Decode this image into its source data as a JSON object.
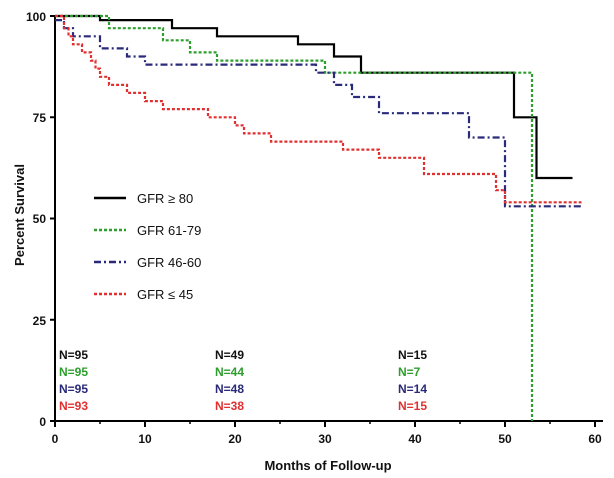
{
  "chart_data": {
    "type": "line",
    "title": "",
    "xlabel": "Months of Follow-up",
    "ylabel": "Percent Survival",
    "xlim": [
      0,
      60
    ],
    "ylim": [
      0,
      100
    ],
    "x_ticks": [
      "0",
      "10",
      "20",
      "30",
      "40",
      "50",
      "60"
    ],
    "y_ticks": [
      "0",
      "25",
      "50",
      "75",
      "100"
    ],
    "grid": false,
    "legend_placement": "left-middle",
    "series": [
      {
        "name": "GFR ≥ 80",
        "color": "#000000",
        "dash": "solid",
        "step": [
          [
            0,
            100
          ],
          [
            5,
            100
          ],
          [
            5,
            99
          ],
          [
            13,
            99
          ],
          [
            13,
            97
          ],
          [
            18,
            97
          ],
          [
            18,
            95
          ],
          [
            27,
            95
          ],
          [
            27,
            93
          ],
          [
            31,
            93
          ],
          [
            31,
            90
          ],
          [
            34,
            90
          ],
          [
            34,
            86
          ],
          [
            51,
            86
          ],
          [
            51,
            75
          ],
          [
            53.5,
            75
          ],
          [
            53.5,
            60
          ],
          [
            57.5,
            60
          ]
        ]
      },
      {
        "name": "GFR 61-79",
        "color": "#2e9e2e",
        "dash": "dotted",
        "step": [
          [
            0,
            100
          ],
          [
            6,
            100
          ],
          [
            6,
            97
          ],
          [
            12,
            97
          ],
          [
            12,
            94
          ],
          [
            15,
            94
          ],
          [
            15,
            91
          ],
          [
            18,
            91
          ],
          [
            18,
            89
          ],
          [
            30,
            89
          ],
          [
            30,
            86
          ],
          [
            53,
            86
          ],
          [
            53,
            0
          ]
        ]
      },
      {
        "name": "GFR 46-60",
        "color": "#2a2a7a",
        "dash": "dashdot",
        "step": [
          [
            0,
            99
          ],
          [
            1,
            99
          ],
          [
            1,
            97
          ],
          [
            2,
            97
          ],
          [
            2,
            95
          ],
          [
            5,
            95
          ],
          [
            5,
            92
          ],
          [
            8,
            92
          ],
          [
            8,
            90
          ],
          [
            10,
            90
          ],
          [
            10,
            88
          ],
          [
            29,
            88
          ],
          [
            29,
            86
          ],
          [
            31,
            86
          ],
          [
            31,
            83
          ],
          [
            33,
            83
          ],
          [
            33,
            80
          ],
          [
            36,
            80
          ],
          [
            36,
            76
          ],
          [
            46,
            76
          ],
          [
            46,
            70
          ],
          [
            50,
            70
          ],
          [
            50,
            53
          ],
          [
            58.5,
            53
          ]
        ]
      },
      {
        "name": "GFR ≤ 45",
        "color": "#e03030",
        "dash": "dotted",
        "step": [
          [
            0,
            100
          ],
          [
            1,
            100
          ],
          [
            1,
            97
          ],
          [
            1.5,
            97
          ],
          [
            1.5,
            95
          ],
          [
            2,
            95
          ],
          [
            2,
            93
          ],
          [
            3,
            93
          ],
          [
            3,
            91
          ],
          [
            4,
            91
          ],
          [
            4,
            89
          ],
          [
            4.5,
            89
          ],
          [
            4.5,
            87
          ],
          [
            5,
            87
          ],
          [
            5,
            85
          ],
          [
            6,
            85
          ],
          [
            6,
            83
          ],
          [
            8,
            83
          ],
          [
            8,
            81
          ],
          [
            10,
            81
          ],
          [
            10,
            79
          ],
          [
            12,
            79
          ],
          [
            12,
            77
          ],
          [
            17,
            77
          ],
          [
            17,
            75
          ],
          [
            20,
            75
          ],
          [
            20,
            73
          ],
          [
            21,
            73
          ],
          [
            21,
            71
          ],
          [
            24,
            71
          ],
          [
            24,
            69
          ],
          [
            32,
            69
          ],
          [
            32,
            67
          ],
          [
            36,
            67
          ],
          [
            36,
            65
          ],
          [
            41,
            65
          ],
          [
            41,
            61
          ],
          [
            49,
            61
          ],
          [
            49,
            57
          ],
          [
            50,
            57
          ],
          [
            50,
            54
          ],
          [
            58.5,
            54
          ]
        ]
      }
    ],
    "at_risk": [
      {
        "color": "#111111",
        "labels": [
          "N=95",
          "N=49",
          "N=15"
        ]
      },
      {
        "color": "#2e9e2e",
        "labels": [
          "N=95",
          "N=44",
          "N=7"
        ]
      },
      {
        "color": "#2a2a7a",
        "labels": [
          "N=95",
          "N=48",
          "N=14"
        ]
      },
      {
        "color": "#e03030",
        "labels": [
          "N=93",
          "N=38",
          "N=15"
        ]
      }
    ]
  }
}
